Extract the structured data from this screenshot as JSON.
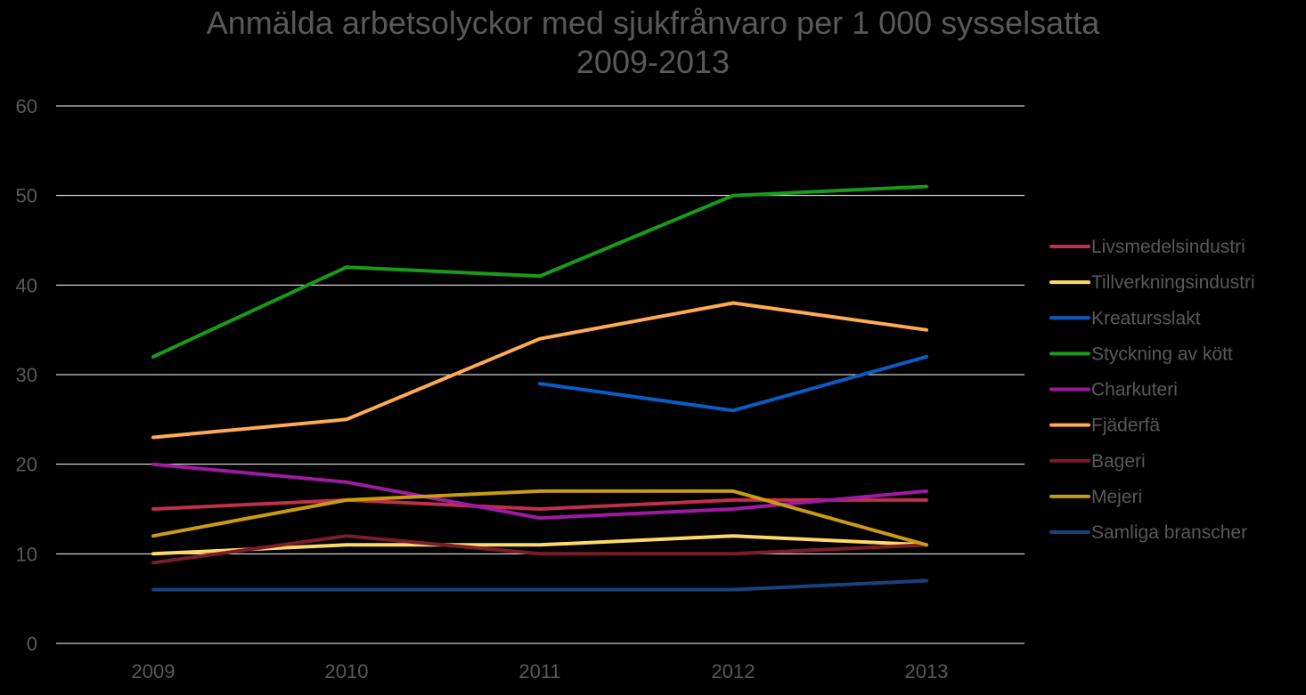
{
  "chart_data": {
    "type": "line",
    "title": [
      "Anmälda arbetsolyckor med sjukfrånvaro per 1 000 sysselsatta",
      "2009-2013"
    ],
    "xlabel": "",
    "ylabel": "",
    "categories": [
      "2009",
      "2010",
      "2011",
      "2012",
      "2013"
    ],
    "ylim": [
      0,
      60
    ],
    "yticks": [
      0,
      10,
      20,
      30,
      40,
      50,
      60
    ],
    "grid": true,
    "legend_position": "right",
    "series": [
      {
        "name": "Livsmedelsindustri",
        "color": "#c0304a",
        "values": [
          15,
          16,
          15,
          16,
          16
        ]
      },
      {
        "name": "Tillverkningsindustri",
        "color": "#ffd966",
        "values": [
          10,
          11,
          11,
          12,
          11
        ]
      },
      {
        "name": "Kreatursslakt",
        "color": "#0b5cc4",
        "values": [
          null,
          null,
          29,
          26,
          32
        ]
      },
      {
        "name": "Styckning av kött",
        "color": "#1a9a1a",
        "values": [
          32,
          42,
          41,
          50,
          51
        ]
      },
      {
        "name": "Charkuteri",
        "color": "#9e1aa3",
        "values": [
          20,
          18,
          14,
          15,
          17
        ]
      },
      {
        "name": "Fjäderfä",
        "color": "#ffaa55",
        "values": [
          23,
          25,
          34,
          38,
          35
        ]
      },
      {
        "name": "Bageri",
        "color": "#7b1c2c",
        "values": [
          9,
          12,
          10,
          10,
          11
        ]
      },
      {
        "name": "Mejeri",
        "color": "#c99a14",
        "values": [
          12,
          16,
          17,
          17,
          11
        ]
      },
      {
        "name": "Samliga branscher",
        "color": "#17427f",
        "values": [
          6,
          6,
          6,
          6,
          7
        ]
      }
    ]
  }
}
